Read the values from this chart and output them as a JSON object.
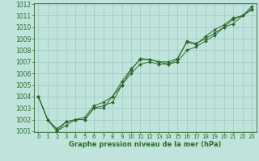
{
  "x": [
    0,
    1,
    2,
    3,
    4,
    5,
    6,
    7,
    8,
    9,
    10,
    11,
    12,
    13,
    14,
    15,
    16,
    17,
    18,
    19,
    20,
    21,
    22,
    23
  ],
  "series1": [
    1004.0,
    1002.0,
    1001.0,
    1001.5,
    1002.0,
    1002.0,
    1003.0,
    1003.0,
    1004.0,
    1005.0,
    1006.0,
    1006.8,
    1007.0,
    1006.8,
    1006.8,
    1007.0,
    1008.0,
    1008.3,
    1008.8,
    1009.3,
    1010.0,
    1010.3,
    1011.0,
    1011.5
  ],
  "series2": [
    1004.0,
    1002.0,
    1001.2,
    1001.8,
    1002.0,
    1002.2,
    1003.2,
    1003.5,
    1004.0,
    1005.3,
    1006.4,
    1007.2,
    1007.2,
    1007.0,
    1007.0,
    1007.3,
    1008.7,
    1008.5,
    1009.2,
    1009.8,
    1010.2,
    1010.8,
    1011.0,
    1011.8
  ],
  "series3": [
    1004.0,
    1002.0,
    1001.0,
    1001.8,
    1002.0,
    1002.0,
    1003.0,
    1003.2,
    1003.5,
    1005.0,
    1006.3,
    1007.3,
    1007.2,
    1007.0,
    1006.8,
    1007.2,
    1008.8,
    1008.6,
    1009.0,
    1009.5,
    1010.0,
    1010.7,
    1011.0,
    1011.6
  ],
  "line_color": "#2d6a2d",
  "bg_color": "#c0e4dc",
  "grid_color": "#9ec8c0",
  "xlabel": "Graphe pression niveau de la mer (hPa)",
  "ylim": [
    1001,
    1012
  ],
  "xlim": [
    -0.5,
    23.5
  ],
  "yticks": [
    1001,
    1002,
    1003,
    1004,
    1005,
    1006,
    1007,
    1008,
    1009,
    1010,
    1011,
    1012
  ],
  "xticks": [
    0,
    1,
    2,
    3,
    4,
    5,
    6,
    7,
    8,
    9,
    10,
    11,
    12,
    13,
    14,
    15,
    16,
    17,
    18,
    19,
    20,
    21,
    22,
    23
  ],
  "ytick_fontsize": 5.5,
  "xtick_fontsize": 5.0,
  "xlabel_fontsize": 6.0,
  "linewidth": 0.7,
  "markersize": 2.0
}
